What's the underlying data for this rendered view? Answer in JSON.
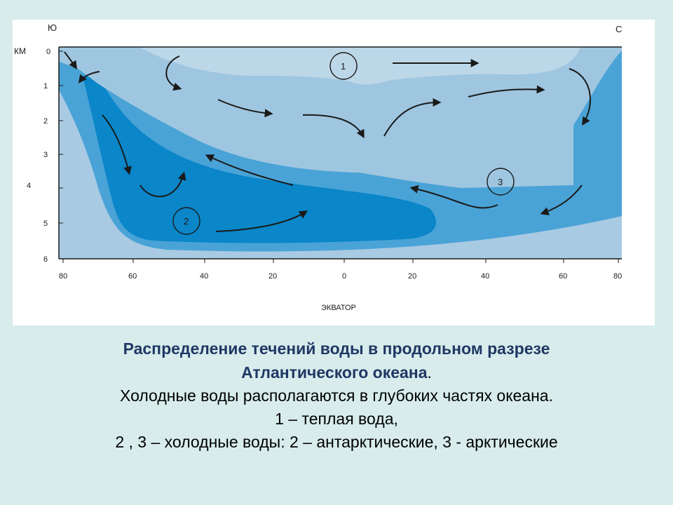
{
  "diagram": {
    "direction_south": "Ю",
    "direction_north": "С",
    "depth_unit": "КМ",
    "depth_ticks": [
      "0",
      "1",
      "2",
      "3",
      "4",
      "5",
      "6"
    ],
    "lat_ticks": [
      "80",
      "60",
      "40",
      "20",
      "0",
      "20",
      "40",
      "60",
      "80"
    ],
    "equator_label": "ЭКВАТОР",
    "water_mass_labels": [
      "1",
      "2",
      "3"
    ],
    "colors": {
      "background": "#4aa3d6",
      "warm_upper": "#bcd7e8",
      "intermediate": "#9fc6e0",
      "deep_core": "#0a86c9",
      "bottom_layer": "#a9cae3",
      "arrow": "#1a1a1a"
    }
  },
  "caption": {
    "title_part1": "Распределение течений воды в продольном разрезе",
    "title_part2": "Атлантического океана",
    "title_end": ".",
    "line1": "Холодные  воды располагаются в глубоких частях океана.",
    "line2": "1 – теплая вода,",
    "line3": "2 , 3 – холодные воды: 2 – антарктические, 3 - арктические"
  }
}
